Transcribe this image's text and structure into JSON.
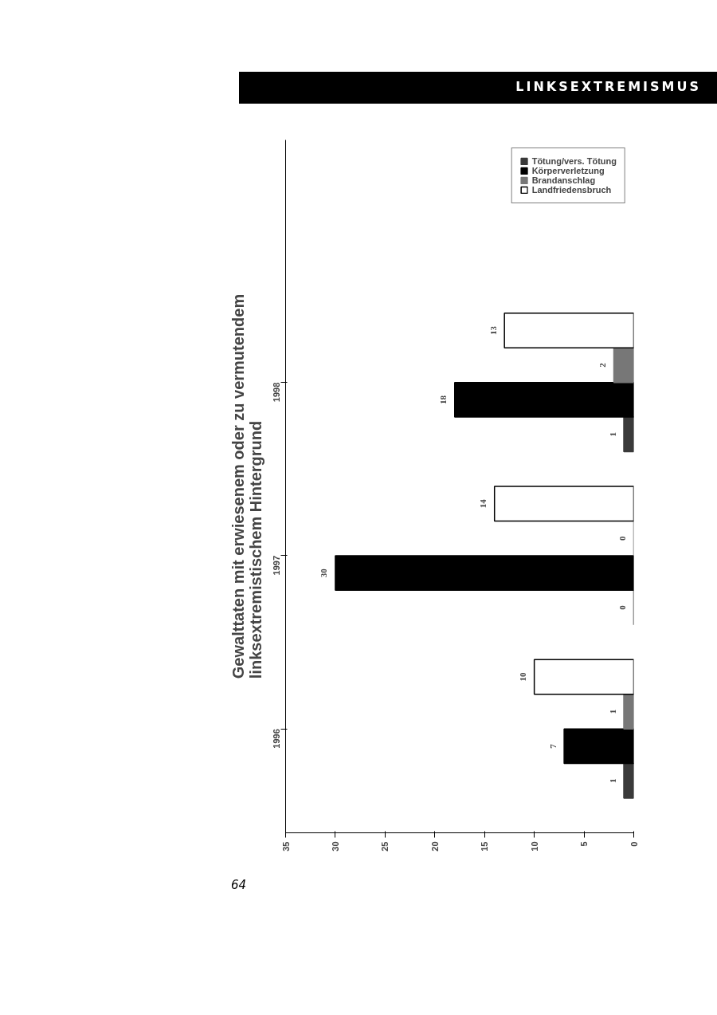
{
  "chart_data": {
    "type": "bar",
    "orientation": "horizontal",
    "title": "Gewalttaten mit erwiesenem oder zu vermutendem\nlinksextremistischem Hintergrund",
    "categories": [
      "1998",
      "1997",
      "1996"
    ],
    "series": [
      {
        "name": "Tötung/vers. Tötung",
        "color": "#3a3a3a",
        "values": [
          1,
          0,
          1
        ]
      },
      {
        "name": "Körperverletzung",
        "color": "#000000",
        "values": [
          18,
          30,
          7
        ]
      },
      {
        "name": "Brandanschlag",
        "color": "#777777",
        "values": [
          2,
          0,
          1
        ]
      },
      {
        "name": "Landfriedensbruch",
        "color": "#ffffff",
        "values": [
          13,
          14,
          10
        ]
      }
    ],
    "xlim": [
      35,
      0
    ],
    "xticks": [
      0,
      5,
      10,
      15,
      20,
      25,
      30,
      35
    ],
    "grid": false,
    "legend": "top right",
    "data_labels": true,
    "annotations": [
      "LINKSEXTREMISMUS",
      "64"
    ]
  }
}
